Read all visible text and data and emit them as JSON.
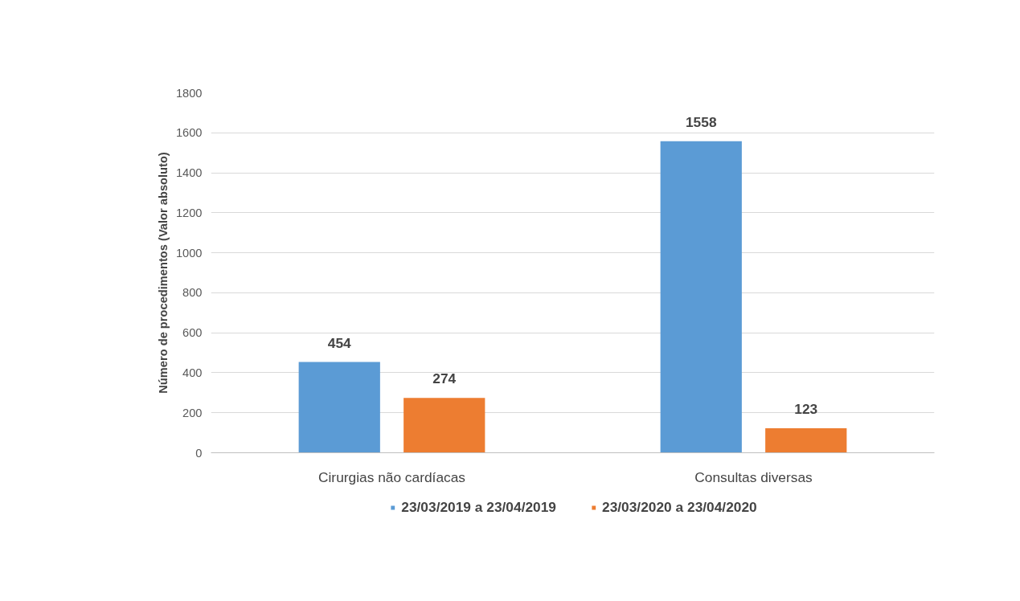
{
  "chart_data": {
    "type": "bar",
    "ylabel": "Número de procedimentos (Valor absoluto)",
    "categories": [
      "Cirurgias não cardíacas",
      "Consultas diversas"
    ],
    "series": [
      {
        "name": "23/03/2019 a 23/04/2019",
        "color": "#5b9bd5",
        "values": [
          454,
          1558
        ]
      },
      {
        "name": "23/03/2020 a 23/04/2020",
        "color": "#ed7d31",
        "values": [
          274,
          123
        ]
      }
    ],
    "ylim": [
      0,
      1800
    ],
    "yticks": [
      0,
      200,
      400,
      600,
      800,
      1000,
      1200,
      1400,
      1600,
      1800
    ],
    "grid": "y",
    "legend": "bottom",
    "data_labels": true
  }
}
